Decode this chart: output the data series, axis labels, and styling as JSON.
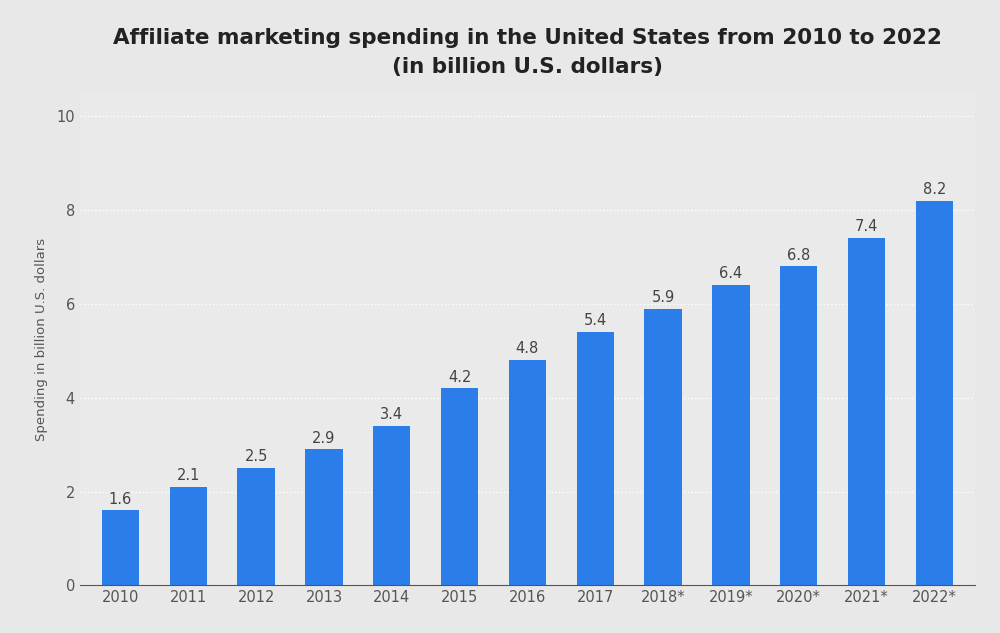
{
  "title_line1": "Affiliate marketing spending in the United States from 2010 to 2022",
  "title_line2": "(in billion U.S. dollars)",
  "ylabel": "Spending in billion U.S. dollars",
  "categories": [
    "2010",
    "2011",
    "2012",
    "2013",
    "2014",
    "2015",
    "2016",
    "2017",
    "2018*",
    "2019*",
    "2020*",
    "2021*",
    "2022*"
  ],
  "values": [
    1.6,
    2.1,
    2.5,
    2.9,
    3.4,
    4.2,
    4.8,
    5.4,
    5.9,
    6.4,
    6.8,
    7.4,
    8.2
  ],
  "bar_color": "#2b7de9",
  "background_color": "#e8e8e8",
  "plot_bg_color": "#eaeaea",
  "border_color": "#2255aa",
  "ylim": [
    0,
    10.5
  ],
  "yticks": [
    0,
    2,
    4,
    6,
    8,
    10
  ],
  "title_fontsize": 15.5,
  "ylabel_fontsize": 9.5,
  "value_label_fontsize": 10.5,
  "tick_fontsize": 10.5,
  "grid_color": "#ffffff",
  "grid_linestyle": "dotted",
  "bar_width": 0.55
}
